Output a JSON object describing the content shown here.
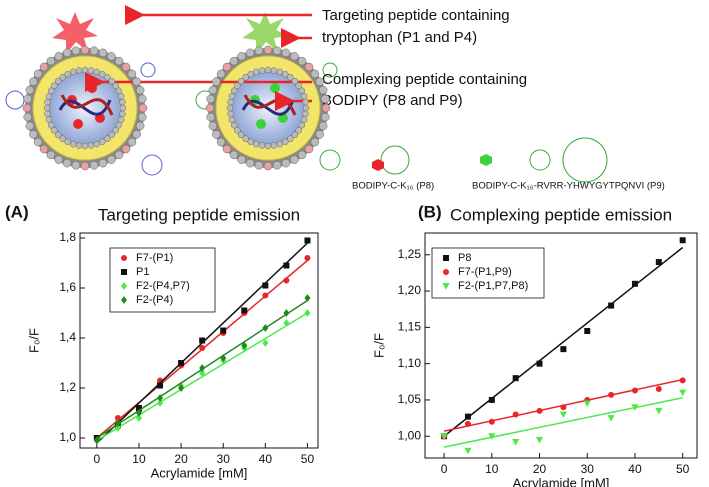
{
  "diagram": {
    "labels": [
      "Targeting peptide containing",
      "tryptophan (P1 and P4)",
      "Complexing peptide containing",
      "BODIPY (P8 and P9)"
    ],
    "structures": [
      "BODIPY-C-K₁₆ (P8)",
      "BODIPY-C-K₁₆-RVRR-YHWYGYTPQNVI (P9)"
    ]
  },
  "chart_data": [
    {
      "type": "scatter",
      "panel": "(A)",
      "title": "Targeting peptide emission",
      "x_label": "Acrylamide [mM]",
      "y_label": "F₀/F",
      "x": [
        0,
        5,
        10,
        15,
        20,
        25,
        30,
        35,
        40,
        45,
        50
      ],
      "xlim": [
        -4,
        52.5
      ],
      "xticks": [
        0,
        10,
        20,
        30,
        40,
        50
      ],
      "ylim": [
        0.96,
        1.82
      ],
      "yticks": [
        {
          "value": 1.0,
          "label": "1,0"
        },
        {
          "value": 1.2,
          "label": "1,2"
        },
        {
          "value": 1.4,
          "label": "1,4"
        },
        {
          "value": 1.6,
          "label": "1,6"
        },
        {
          "value": 1.8,
          "label": "1,8"
        }
      ],
      "series": [
        {
          "name": "F7-(P1)",
          "color": "#e8262a",
          "marker": "circle",
          "values": [
            1.0,
            1.08,
            1.11,
            1.23,
            1.29,
            1.36,
            1.42,
            1.5,
            1.57,
            1.63,
            1.72
          ],
          "fit": [
            1.0,
            1.71
          ]
        },
        {
          "name": "P1",
          "color": "#111111",
          "marker": "square",
          "values": [
            1.0,
            1.05,
            1.12,
            1.21,
            1.3,
            1.39,
            1.43,
            1.51,
            1.61,
            1.69,
            1.79
          ],
          "fit": [
            0.98,
            1.78
          ]
        },
        {
          "name": "F2-(P4,P7)",
          "color": "#4ee84a",
          "marker": "diamond",
          "values": [
            0.99,
            1.04,
            1.08,
            1.14,
            1.21,
            1.26,
            1.31,
            1.36,
            1.38,
            1.46,
            1.5
          ],
          "fit": [
            0.99,
            1.5
          ]
        },
        {
          "name": "F2-(P4)",
          "color": "#1e8a1e",
          "marker": "diamond",
          "values": [
            0.99,
            1.06,
            1.1,
            1.16,
            1.2,
            1.28,
            1.32,
            1.37,
            1.44,
            1.5,
            1.56
          ],
          "fit": [
            1.0,
            1.55
          ]
        }
      ]
    },
    {
      "type": "scatter",
      "panel": "(B)",
      "title": "Complexing peptide emission",
      "x_label": "Acrylamide [mM]",
      "y_label": "F₀/F",
      "x": [
        0,
        5,
        10,
        15,
        20,
        25,
        30,
        35,
        40,
        45,
        50
      ],
      "xlim": [
        -4,
        53
      ],
      "xticks": [
        0,
        10,
        20,
        30,
        40,
        50
      ],
      "ylim": [
        0.97,
        1.28
      ],
      "yticks": [
        {
          "value": 1.0,
          "label": "1,00"
        },
        {
          "value": 1.05,
          "label": "1,05"
        },
        {
          "value": 1.1,
          "label": "1,10"
        },
        {
          "value": 1.15,
          "label": "1,15"
        },
        {
          "value": 1.2,
          "label": "1,20"
        },
        {
          "value": 1.25,
          "label": "1,25"
        }
      ],
      "series": [
        {
          "name": "P8",
          "color": "#111111",
          "marker": "square",
          "values": [
            1.0,
            1.027,
            1.05,
            1.08,
            1.1,
            1.12,
            1.145,
            1.18,
            1.21,
            1.24,
            1.27
          ],
          "fit": [
            1.0,
            1.26
          ]
        },
        {
          "name": "F7-(P1,P9)",
          "color": "#e8262a",
          "marker": "circle",
          "values": [
            1.0,
            1.017,
            1.02,
            1.03,
            1.035,
            1.04,
            1.05,
            1.057,
            1.063,
            1.065,
            1.077
          ],
          "fit": [
            1.007,
            1.078
          ]
        },
        {
          "name": "F2-(P1,P7,P8)",
          "color": "#4ee84a",
          "marker": "triangle-down",
          "values": [
            1.0,
            0.98,
            1.0,
            0.992,
            0.995,
            1.03,
            1.045,
            1.025,
            1.04,
            1.035,
            1.06
          ],
          "fit": [
            0.985,
            1.053
          ]
        }
      ]
    }
  ]
}
